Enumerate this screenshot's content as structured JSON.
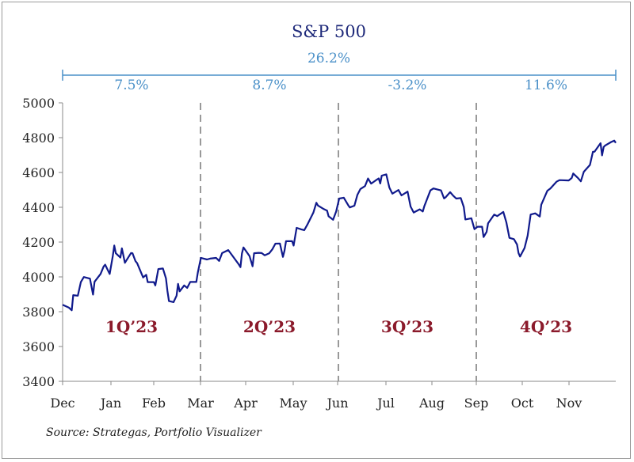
{
  "chart_data": {
    "type": "line",
    "title": "S&P 500",
    "total_return": "26.2%",
    "quarter_returns": [
      "7.5%",
      "8.7%",
      "-3.2%",
      "11.6%"
    ],
    "quarter_labels": [
      "1Q’23",
      "2Q’23",
      "3Q’23",
      "4Q’23"
    ],
    "x_tick_labels": [
      "Dec",
      "Jan",
      "Feb",
      "Mar",
      "Apr",
      "May",
      "Jun",
      "Jul",
      "Aug",
      "Sep",
      "Oct",
      "Nov"
    ],
    "y_ticks": [
      3400,
      3600,
      3800,
      4000,
      4200,
      4400,
      4600,
      4800,
      5000
    ],
    "ylim": [
      3400,
      5000
    ],
    "source": "Source: Strategas, Portfolio Visualizer",
    "series": [
      {
        "color": "#101a8c",
        "points": [
          [
            "2022-12-30",
            3840
          ],
          [
            "2023-01-03",
            3824
          ],
          [
            "2023-01-05",
            3808
          ],
          [
            "2023-01-06",
            3895
          ],
          [
            "2023-01-09",
            3892
          ],
          [
            "2023-01-11",
            3970
          ],
          [
            "2023-01-13",
            3999
          ],
          [
            "2023-01-17",
            3990
          ],
          [
            "2023-01-19",
            3898
          ],
          [
            "2023-01-20",
            3972
          ],
          [
            "2023-01-24",
            4017
          ],
          [
            "2023-01-26",
            4060
          ],
          [
            "2023-01-27",
            4070
          ],
          [
            "2023-01-30",
            4017
          ],
          [
            "2023-02-01",
            4119
          ],
          [
            "2023-02-02",
            4180
          ],
          [
            "2023-02-03",
            4136
          ],
          [
            "2023-02-06",
            4111
          ],
          [
            "2023-02-07",
            4164
          ],
          [
            "2023-02-09",
            4081
          ],
          [
            "2023-02-13",
            4137
          ],
          [
            "2023-02-14",
            4136
          ],
          [
            "2023-02-16",
            4090
          ],
          [
            "2023-02-17",
            4079
          ],
          [
            "2023-02-21",
            3997
          ],
          [
            "2023-02-23",
            4012
          ],
          [
            "2023-02-24",
            3970
          ],
          [
            "2023-02-28",
            3970
          ],
          [
            "2023-03-01",
            3951
          ],
          [
            "2023-03-03",
            4045
          ],
          [
            "2023-03-06",
            4048
          ],
          [
            "2023-03-08",
            3992
          ],
          [
            "2023-03-09",
            3918
          ],
          [
            "2023-03-10",
            3861
          ],
          [
            "2023-03-13",
            3855
          ],
          [
            "2023-03-15",
            3892
          ],
          [
            "2023-03-16",
            3960
          ],
          [
            "2023-03-17",
            3917
          ],
          [
            "2023-03-20",
            3951
          ],
          [
            "2023-03-22",
            3937
          ],
          [
            "2023-03-24",
            3971
          ],
          [
            "2023-03-28",
            3971
          ],
          [
            "2023-03-29",
            4027
          ],
          [
            "2023-03-31",
            4109
          ],
          [
            "2023-04-04",
            4100
          ],
          [
            "2023-04-06",
            4105
          ],
          [
            "2023-04-10",
            4109
          ],
          [
            "2023-04-12",
            4092
          ],
          [
            "2023-04-14",
            4137
          ],
          [
            "2023-04-18",
            4154
          ],
          [
            "2023-04-20",
            4130
          ],
          [
            "2023-04-25",
            4071
          ],
          [
            "2023-04-26",
            4056
          ],
          [
            "2023-04-27",
            4135
          ],
          [
            "2023-04-28",
            4169
          ],
          [
            "2023-05-02",
            4119
          ],
          [
            "2023-05-04",
            4061
          ],
          [
            "2023-05-05",
            4136
          ],
          [
            "2023-05-08",
            4138
          ],
          [
            "2023-05-10",
            4137
          ],
          [
            "2023-05-12",
            4124
          ],
          [
            "2023-05-15",
            4136
          ],
          [
            "2023-05-17",
            4158
          ],
          [
            "2023-05-19",
            4191
          ],
          [
            "2023-05-22",
            4192
          ],
          [
            "2023-05-24",
            4115
          ],
          [
            "2023-05-25",
            4151
          ],
          [
            "2023-05-26",
            4205
          ],
          [
            "2023-05-30",
            4205
          ],
          [
            "2023-05-31",
            4180
          ],
          [
            "2023-06-02",
            4282
          ],
          [
            "2023-06-05",
            4273
          ],
          [
            "2023-06-07",
            4268
          ],
          [
            "2023-06-09",
            4299
          ],
          [
            "2023-06-13",
            4369
          ],
          [
            "2023-06-15",
            4426
          ],
          [
            "2023-06-16",
            4410
          ],
          [
            "2023-06-20",
            4389
          ],
          [
            "2023-06-22",
            4381
          ],
          [
            "2023-06-23",
            4348
          ],
          [
            "2023-06-26",
            4328
          ],
          [
            "2023-06-28",
            4376
          ],
          [
            "2023-06-30",
            4450
          ],
          [
            "2023-07-03",
            4455
          ],
          [
            "2023-07-06",
            4411
          ],
          [
            "2023-07-07",
            4399
          ],
          [
            "2023-07-10",
            4409
          ],
          [
            "2023-07-12",
            4472
          ],
          [
            "2023-07-14",
            4505
          ],
          [
            "2023-07-17",
            4522
          ],
          [
            "2023-07-19",
            4565
          ],
          [
            "2023-07-21",
            4536
          ],
          [
            "2023-07-24",
            4554
          ],
          [
            "2023-07-26",
            4566
          ],
          [
            "2023-07-27",
            4537
          ],
          [
            "2023-07-28",
            4582
          ],
          [
            "2023-07-31",
            4589
          ],
          [
            "2023-08-02",
            4513
          ],
          [
            "2023-08-04",
            4478
          ],
          [
            "2023-08-08",
            4499
          ],
          [
            "2023-08-10",
            4468
          ],
          [
            "2023-08-14",
            4490
          ],
          [
            "2023-08-16",
            4404
          ],
          [
            "2023-08-18",
            4370
          ],
          [
            "2023-08-22",
            4388
          ],
          [
            "2023-08-24",
            4376
          ],
          [
            "2023-08-25",
            4406
          ],
          [
            "2023-08-29",
            4497
          ],
          [
            "2023-08-31",
            4508
          ],
          [
            "2023-09-05",
            4497
          ],
          [
            "2023-09-07",
            4451
          ],
          [
            "2023-09-08",
            4457
          ],
          [
            "2023-09-11",
            4487
          ],
          [
            "2023-09-13",
            4467
          ],
          [
            "2023-09-15",
            4450
          ],
          [
            "2023-09-18",
            4453
          ],
          [
            "2023-09-20",
            4402
          ],
          [
            "2023-09-21",
            4330
          ],
          [
            "2023-09-25",
            4337
          ],
          [
            "2023-09-27",
            4274
          ],
          [
            "2023-09-29",
            4288
          ],
          [
            "2023-10-02",
            4288
          ],
          [
            "2023-10-03",
            4229
          ],
          [
            "2023-10-05",
            4258
          ],
          [
            "2023-10-06",
            4308
          ],
          [
            "2023-10-10",
            4358
          ],
          [
            "2023-10-12",
            4349
          ],
          [
            "2023-10-16",
            4373
          ],
          [
            "2023-10-18",
            4314
          ],
          [
            "2023-10-20",
            4224
          ],
          [
            "2023-10-23",
            4217
          ],
          [
            "2023-10-25",
            4186
          ],
          [
            "2023-10-26",
            4137
          ],
          [
            "2023-10-27",
            4117
          ],
          [
            "2023-10-30",
            4166
          ],
          [
            "2023-11-01",
            4237
          ],
          [
            "2023-11-03",
            4358
          ],
          [
            "2023-11-06",
            4365
          ],
          [
            "2023-11-09",
            4347
          ],
          [
            "2023-11-10",
            4415
          ],
          [
            "2023-11-14",
            4495
          ],
          [
            "2023-11-16",
            4508
          ],
          [
            "2023-11-20",
            4547
          ],
          [
            "2023-11-22",
            4556
          ],
          [
            "2023-11-28",
            4554
          ],
          [
            "2023-11-30",
            4568
          ],
          [
            "2023-12-01",
            4594
          ],
          [
            "2023-12-04",
            4569
          ],
          [
            "2023-12-06",
            4549
          ],
          [
            "2023-12-08",
            4604
          ],
          [
            "2023-12-12",
            4643
          ],
          [
            "2023-12-14",
            4719
          ],
          [
            "2023-12-15",
            4719
          ],
          [
            "2023-12-19",
            4768
          ],
          [
            "2023-12-20",
            4698
          ],
          [
            "2023-12-21",
            4746
          ],
          [
            "2023-12-22",
            4755
          ],
          [
            "2023-12-26",
            4775
          ],
          [
            "2023-12-28",
            4783
          ],
          [
            "2023-12-29",
            4770
          ]
        ]
      }
    ]
  }
}
